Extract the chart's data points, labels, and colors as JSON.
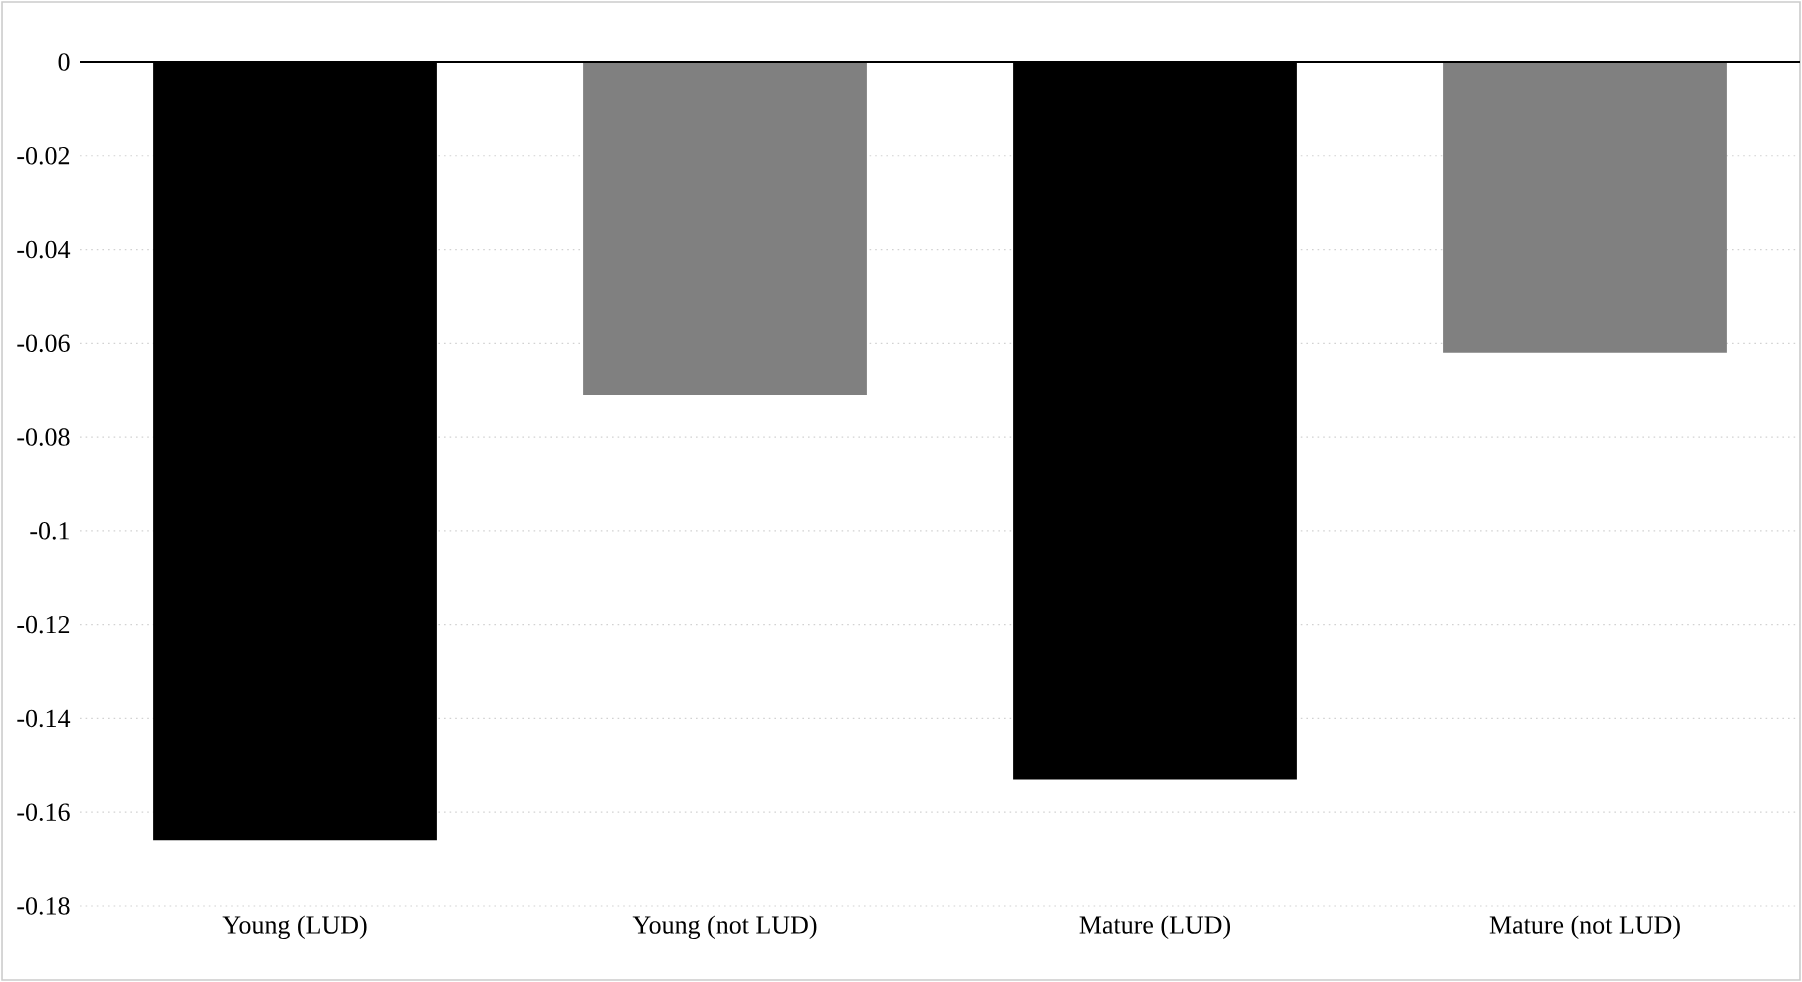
{
  "chart_data": {
    "type": "bar",
    "categories": [
      "Young (LUD)",
      "Young (not LUD)",
      "Mature (LUD)",
      "Mature (not LUD)"
    ],
    "values": [
      -0.166,
      -0.071,
      -0.153,
      -0.062
    ],
    "colors": [
      "#000000",
      "#808080",
      "#000000",
      "#808080"
    ],
    "ylim": [
      -0.18,
      0
    ],
    "yticks": [
      0,
      -0.02,
      -0.04,
      -0.06,
      -0.08,
      -0.1,
      -0.12,
      -0.14,
      -0.16,
      -0.18
    ],
    "grid": "y"
  }
}
